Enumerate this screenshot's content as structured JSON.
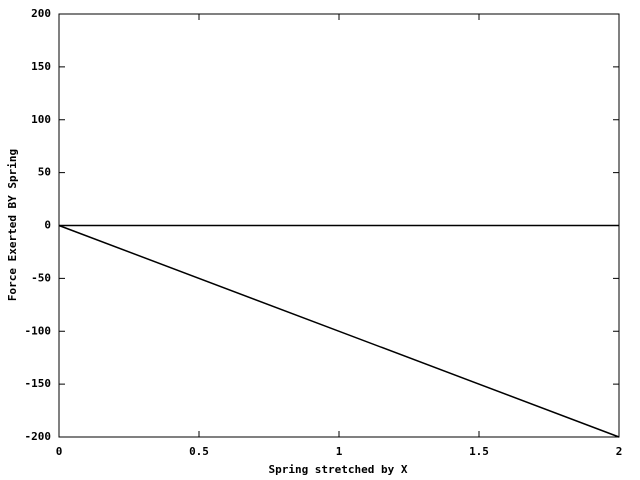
{
  "chart_data": {
    "type": "line",
    "x_label": "Spring stretched by X",
    "y_label": "Force Exerted BY Spring",
    "x": [
      0,
      2
    ],
    "values": [
      0,
      -200
    ],
    "color": "#000000",
    "xlim": [
      0,
      2
    ],
    "xticks": [
      0,
      0.5,
      1,
      1.5,
      2
    ],
    "ylim": [
      -200,
      200
    ],
    "yticks": [
      -200,
      -150,
      -100,
      -50,
      0,
      50,
      100,
      150,
      200
    ],
    "zeroaxis": true,
    "grid": false
  }
}
